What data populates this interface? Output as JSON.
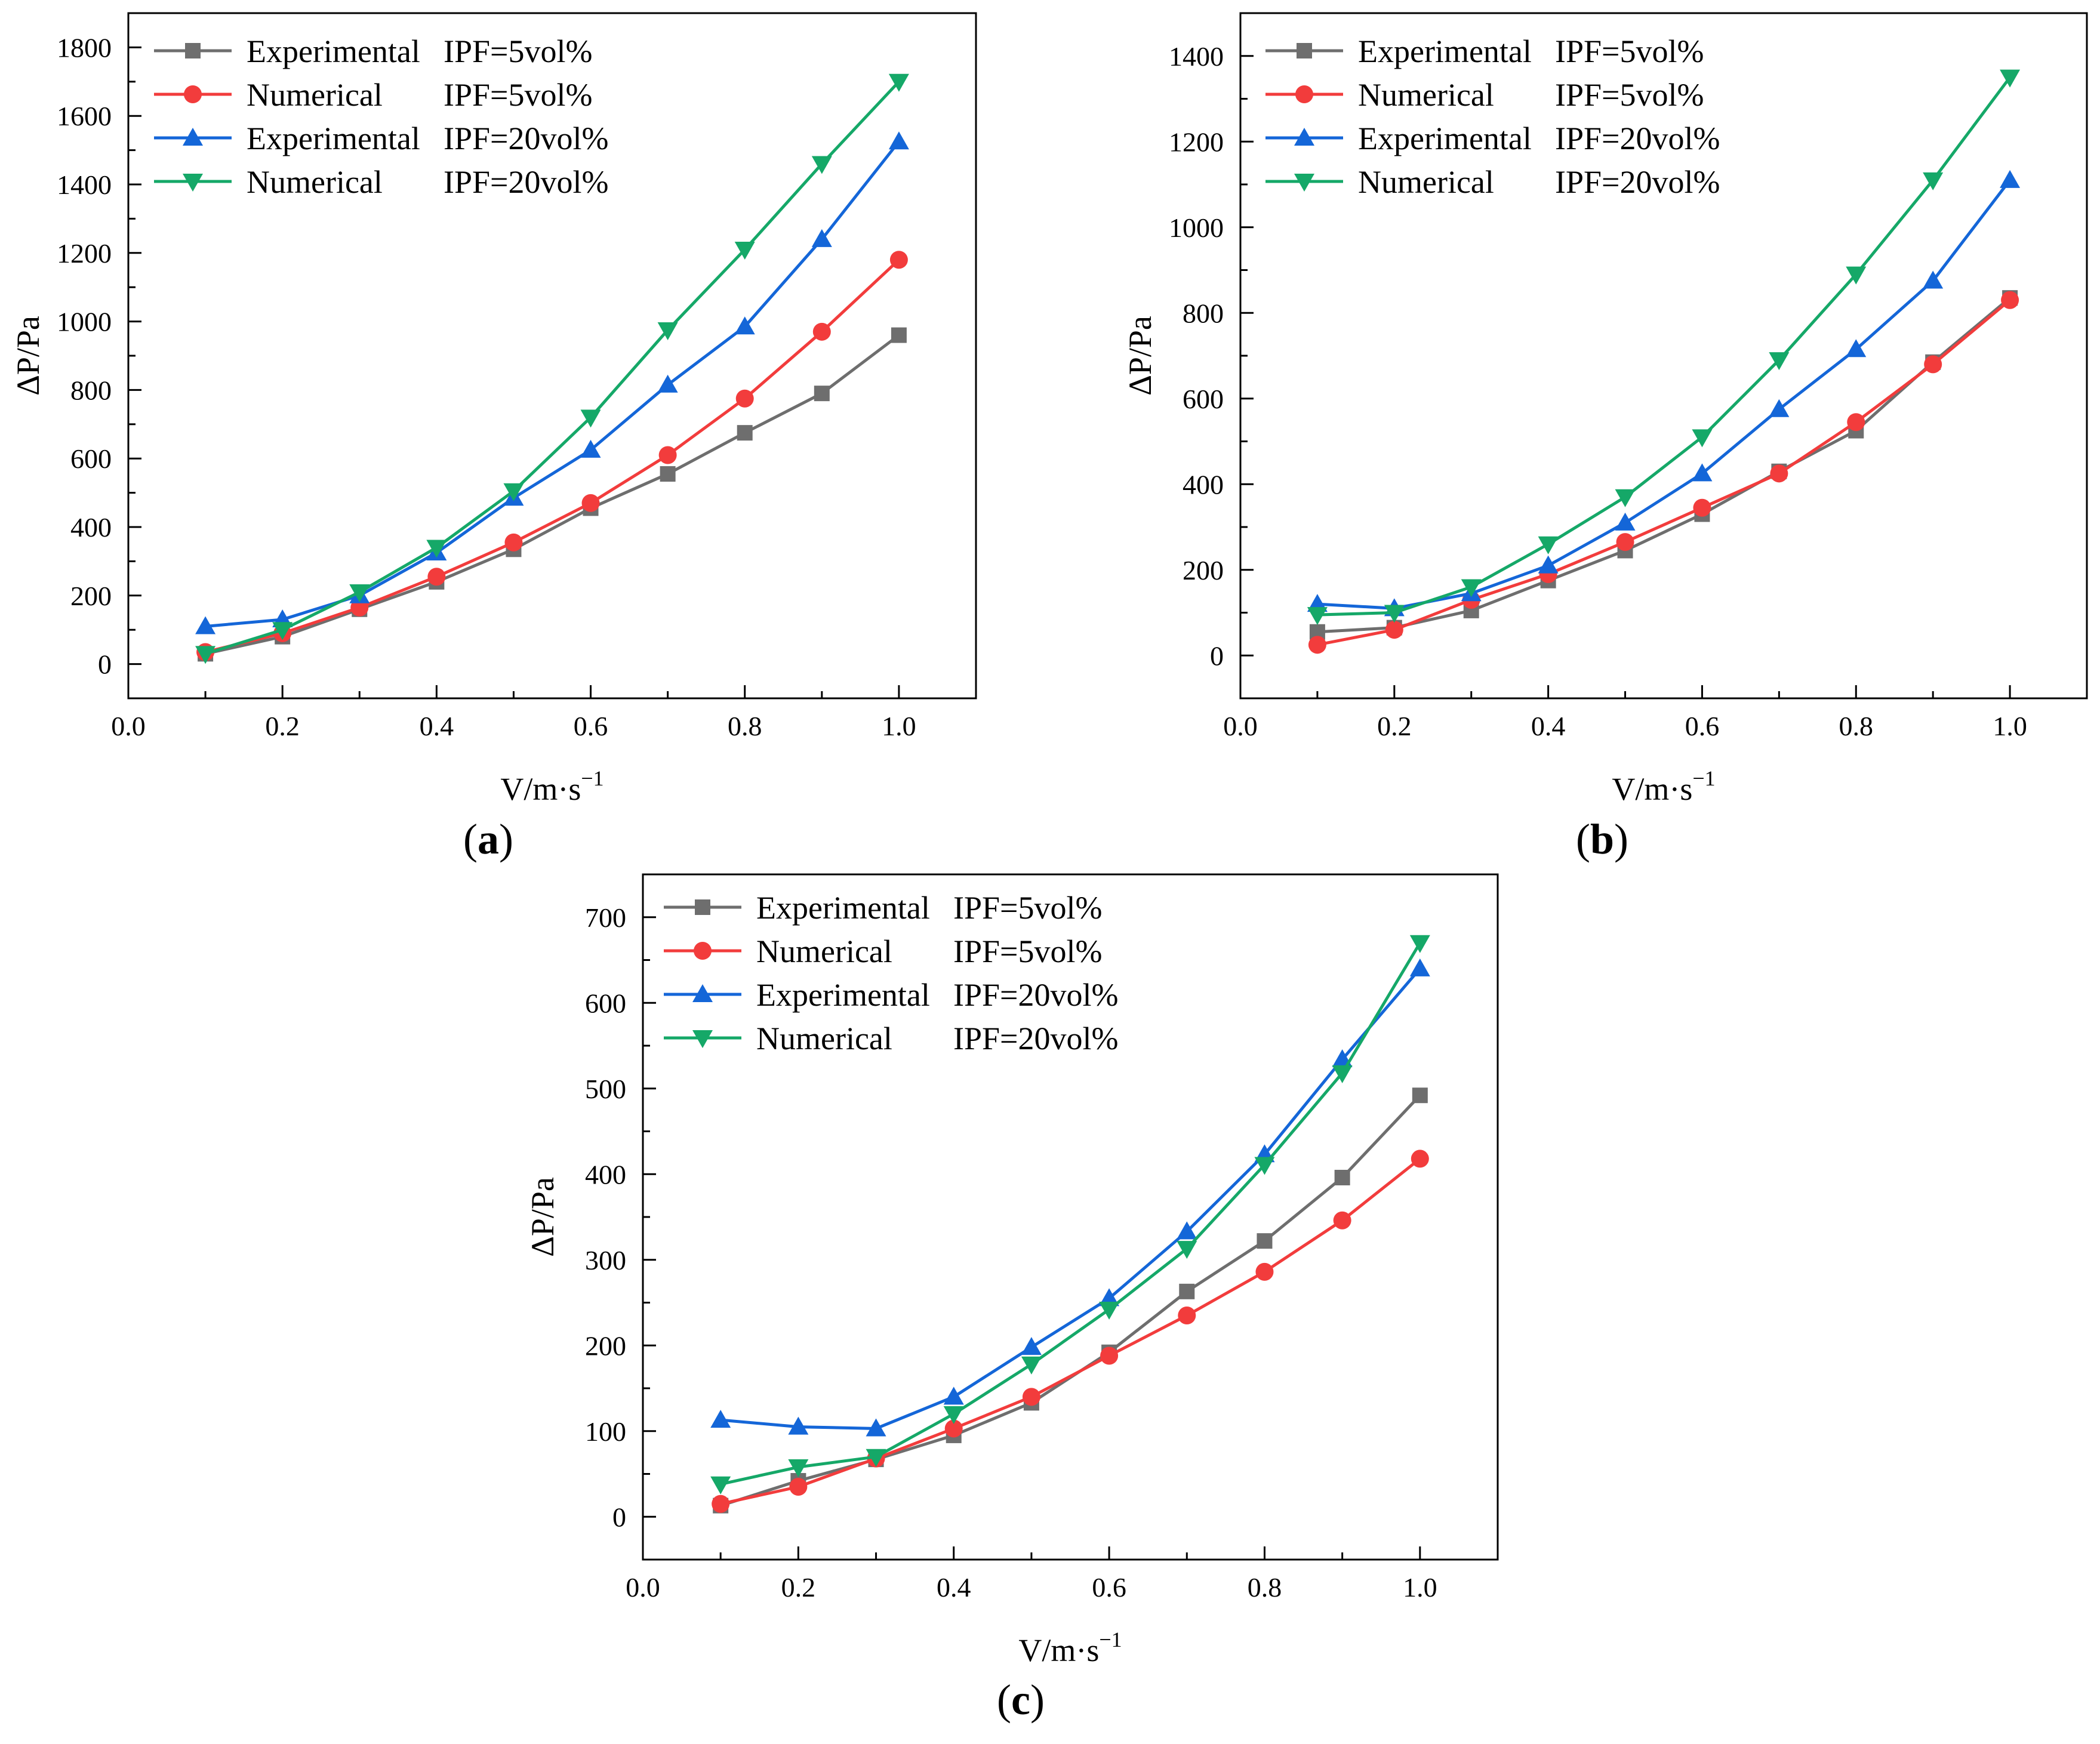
{
  "figure": {
    "panels": [
      "(a)",
      "(b)",
      "(c)"
    ]
  },
  "colors": {
    "Experimental IPF=5vol%": "#6e6e6e",
    "Numerical IPF=5vol%": "#f23c3c",
    "Experimental IPF=20vol%": "#1466d8",
    "Numerical IPF=20vol%": "#15a868"
  },
  "legend_labels": [
    {
      "method": "Experimental",
      "ipf": "IPF=5vol%",
      "marker": "square"
    },
    {
      "method": "Numerical",
      "ipf": "IPF=5vol%",
      "marker": "circle"
    },
    {
      "method": "Experimental",
      "ipf": "IPF=20vol%",
      "marker": "triangle-up"
    },
    {
      "method": "Numerical",
      "ipf": "IPF=20vol%",
      "marker": "triangle-down"
    }
  ],
  "chart_data": [
    {
      "panel": "(a)",
      "type": "line",
      "xlabel": "V/m·s",
      "xlabel_sup": "−1",
      "ylabel": "ΔP/Pa",
      "xlim": [
        0.0,
        1.1
      ],
      "ylim": [
        -100,
        1900
      ],
      "xticks": [
        "0.0",
        "0.2",
        "0.4",
        "0.6",
        "0.8",
        "1.0"
      ],
      "yticks": [
        "0",
        "200",
        "400",
        "600",
        "800",
        "1000",
        "1200",
        "1400",
        "1600",
        "1800"
      ],
      "x": [
        0.1,
        0.2,
        0.3,
        0.4,
        0.5,
        0.6,
        0.7,
        0.8,
        0.9,
        1.0
      ],
      "series": [
        {
          "name": "Experimental IPF=5vol%",
          "values": [
            30,
            80,
            160,
            240,
            335,
            455,
            555,
            675,
            790,
            960
          ]
        },
        {
          "name": "Numerical IPF=5vol%",
          "values": [
            35,
            90,
            165,
            255,
            355,
            470,
            610,
            775,
            970,
            1180
          ]
        },
        {
          "name": "Experimental IPF=20vol%",
          "values": [
            110,
            130,
            200,
            325,
            485,
            625,
            815,
            985,
            1240,
            1525
          ]
        },
        {
          "name": "Numerical IPF=20vol%",
          "values": [
            30,
            100,
            210,
            340,
            505,
            720,
            975,
            1210,
            1460,
            1700
          ]
        }
      ]
    },
    {
      "panel": "(b)",
      "type": "line",
      "xlabel": "V/m·s",
      "xlabel_sup": "−1",
      "ylabel": "ΔP/Pa",
      "xlim": [
        0.0,
        1.1
      ],
      "ylim": [
        -100,
        1500
      ],
      "xticks": [
        "0.0",
        "0.2",
        "0.4",
        "0.6",
        "0.8",
        "1.0"
      ],
      "yticks": [
        "0",
        "200",
        "400",
        "600",
        "800",
        "1000",
        "1200",
        "1400"
      ],
      "x": [
        0.1,
        0.2,
        0.3,
        0.4,
        0.5,
        0.6,
        0.7,
        0.8,
        0.9,
        1.0
      ],
      "series": [
        {
          "name": "Experimental IPF=5vol%",
          "values": [
            55,
            65,
            105,
            175,
            245,
            330,
            430,
            525,
            685,
            835
          ]
        },
        {
          "name": "Numerical IPF=5vol%",
          "values": [
            25,
            60,
            130,
            190,
            265,
            345,
            425,
            545,
            680,
            830
          ]
        },
        {
          "name": "Experimental IPF=20vol%",
          "values": [
            120,
            110,
            145,
            210,
            310,
            425,
            575,
            715,
            875,
            1110
          ]
        },
        {
          "name": "Numerical IPF=20vol%",
          "values": [
            95,
            100,
            160,
            260,
            370,
            510,
            690,
            890,
            1110,
            1350
          ]
        }
      ]
    },
    {
      "panel": "(c)",
      "type": "line",
      "xlabel": "V/m·s",
      "xlabel_sup": "−1",
      "ylabel": "ΔP/Pa",
      "xlim": [
        0.0,
        1.1
      ],
      "ylim": [
        -50,
        750
      ],
      "xticks": [
        "0.0",
        "0.2",
        "0.4",
        "0.6",
        "0.8",
        "1.0"
      ],
      "yticks": [
        "0",
        "100",
        "200",
        "300",
        "400",
        "500",
        "600",
        "700"
      ],
      "x": [
        0.1,
        0.2,
        0.3,
        0.4,
        0.5,
        0.6,
        0.7,
        0.8,
        0.9,
        1.0
      ],
      "series": [
        {
          "name": "Experimental IPF=5vol%",
          "values": [
            13,
            42,
            67,
            95,
            133,
            192,
            263,
            322,
            396,
            492
          ]
        },
        {
          "name": "Numerical IPF=5vol%",
          "values": [
            15,
            35,
            68,
            103,
            140,
            188,
            235,
            286,
            346,
            418
          ]
        },
        {
          "name": "Experimental IPF=20vol%",
          "values": [
            113,
            105,
            103,
            140,
            198,
            255,
            333,
            423,
            534,
            640
          ]
        },
        {
          "name": "Numerical IPF=20vol%",
          "values": [
            38,
            58,
            70,
            120,
            178,
            242,
            313,
            411,
            518,
            670
          ]
        }
      ]
    }
  ]
}
